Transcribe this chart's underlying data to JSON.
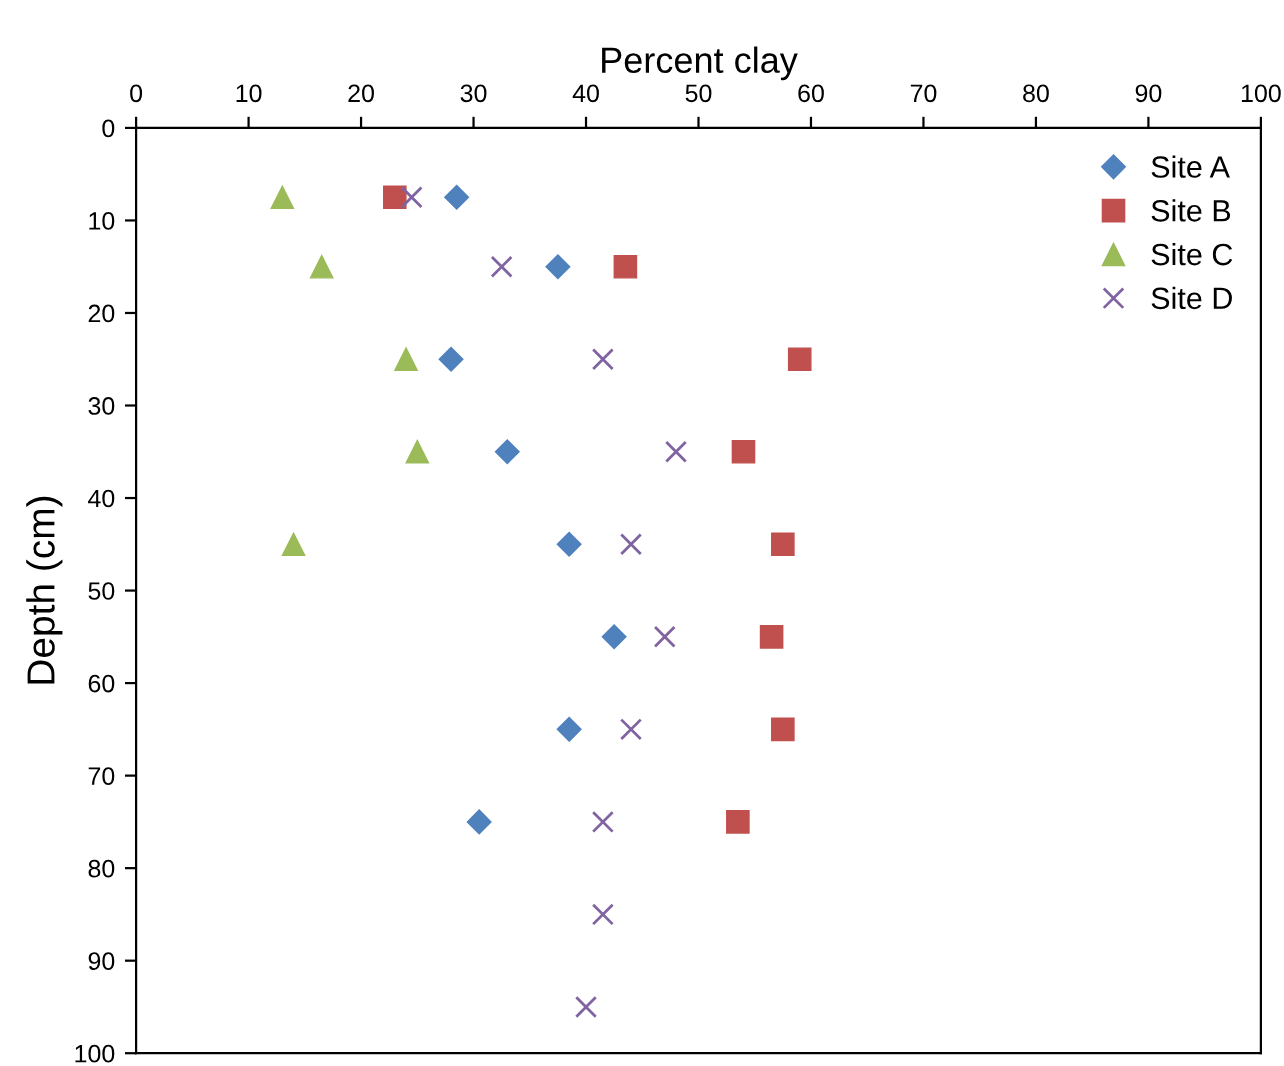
{
  "chart_data": {
    "type": "scatter",
    "xlabel": "Percent clay",
    "ylabel": "Depth (cm)",
    "xlim": [
      0,
      100
    ],
    "ylim": [
      100,
      0
    ],
    "xticks": [
      0,
      10,
      20,
      30,
      40,
      50,
      60,
      70,
      80,
      90,
      100
    ],
    "yticks": [
      0,
      10,
      20,
      30,
      40,
      50,
      60,
      70,
      80,
      90,
      100
    ],
    "grid": false,
    "legend": "top right",
    "series": [
      {
        "name": "Site A",
        "color": "#4f81bd",
        "marker": "diamond",
        "x": [
          28.5,
          37.5,
          28,
          33,
          38.5,
          42.5,
          38.5,
          30.5
        ],
        "values": [
          7.5,
          15,
          25,
          35,
          45,
          55,
          65,
          75
        ]
      },
      {
        "name": "Site B",
        "color": "#c0504d",
        "marker": "square",
        "x": [
          23,
          43.5,
          59,
          54,
          57.5,
          56.5,
          57.5,
          53.5
        ],
        "values": [
          7.5,
          15,
          25,
          35,
          45,
          55,
          65,
          75
        ]
      },
      {
        "name": "Site C",
        "color": "#9bbb59",
        "marker": "triangle",
        "x": [
          13,
          16.5,
          24,
          25,
          14
        ],
        "values": [
          7.5,
          15,
          25,
          35,
          45
        ]
      },
      {
        "name": "Site D",
        "color": "#8064a2",
        "marker": "cross",
        "x": [
          24.5,
          32.5,
          41.5,
          48,
          44,
          47,
          44,
          41.5,
          41.5,
          40
        ],
        "values": [
          7.5,
          15,
          25,
          35,
          45,
          55,
          65,
          75,
          85,
          95
        ]
      }
    ]
  }
}
